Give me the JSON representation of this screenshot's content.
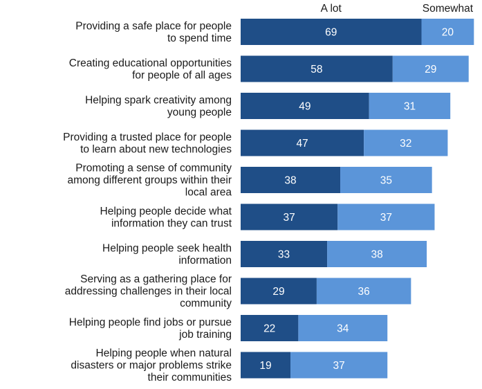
{
  "chart_data": {
    "type": "bar",
    "orientation": "horizontal",
    "stacked": true,
    "legend_placement": "top",
    "grid": false,
    "xlim": [
      0,
      100
    ],
    "categories": [
      [
        "Providing a safe place for people",
        "to spend time"
      ],
      [
        "Creating educational opportunities",
        "for people of all ages"
      ],
      [
        "Helping spark creativity among",
        "young people"
      ],
      [
        "Providing a trusted place for people",
        "to learn about new technologies"
      ],
      [
        "Promoting a sense of community",
        "among different groups within their",
        "local area"
      ],
      [
        "Helping people decide what",
        "information they can trust"
      ],
      [
        "Helping people seek health",
        "information"
      ],
      [
        "Serving as a gathering place for",
        "addressing challenges in their local",
        "community"
      ],
      [
        "Helping people find jobs or pursue",
        "job training"
      ],
      [
        "Helping people when natural",
        "disasters or major problems strike",
        "their communities"
      ]
    ],
    "series": [
      {
        "name": "A lot",
        "color": "#1f4e87",
        "values": [
          69,
          58,
          49,
          47,
          38,
          37,
          33,
          29,
          22,
          19
        ]
      },
      {
        "name": "Somewhat",
        "color": "#5b95d9",
        "values": [
          20,
          29,
          31,
          32,
          35,
          37,
          38,
          36,
          34,
          37
        ]
      }
    ]
  }
}
